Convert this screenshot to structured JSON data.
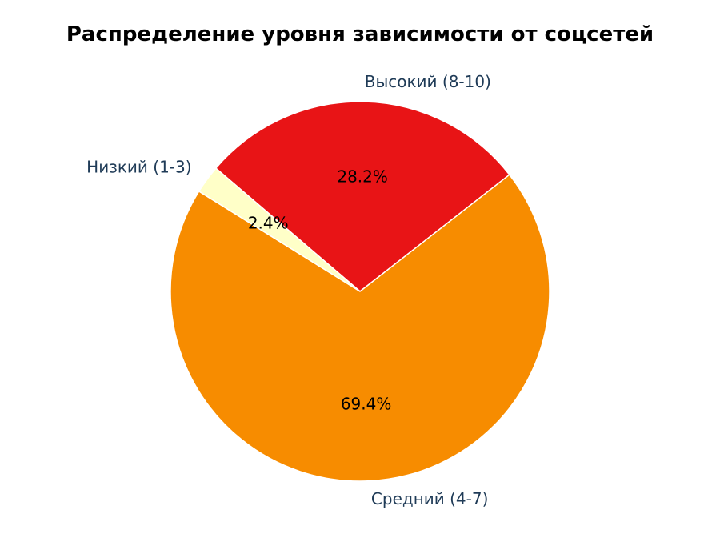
{
  "chart_data": {
    "type": "pie",
    "title": "Распределение уровня зависимости от соцсетей",
    "categories": [
      "Высокий (8-10)",
      "Средний (4-7)",
      "Низкий (1-3)"
    ],
    "values": [
      28.2,
      69.4,
      2.4
    ],
    "value_labels": [
      "28.2%",
      "69.4%",
      "2.4%"
    ],
    "colors": [
      "#e81416",
      "#f78c00",
      "#ffffc8"
    ],
    "label_color": "#1f3b57",
    "start": "upper-left",
    "direction": "clockwise",
    "legend": "none"
  }
}
